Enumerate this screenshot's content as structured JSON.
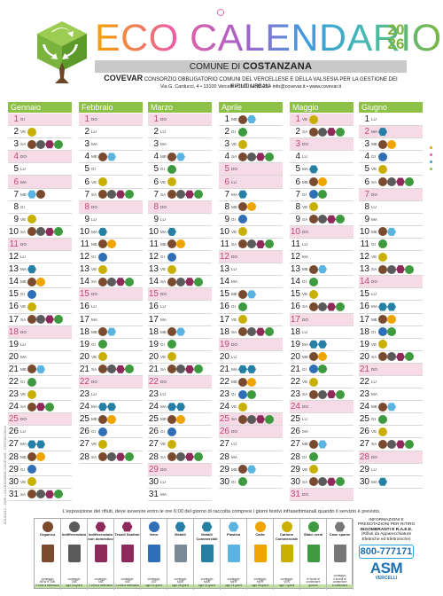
{
  "header": {
    "title": "ECO CALENDARIO",
    "year": "2026",
    "comune_prefix": "COMUNE DI",
    "comune": "COSTANZANA",
    "consortium_name": "COVEVAR",
    "consortium_desc": "CONSORZIO OBBLIGATORIO COMUNI DEL VERCELLESE E DELLA VALSESIA PER LA GESTIONE DEI RIFIUTI URBANI",
    "address": "Via G. Carducci, 4 • 13100 Vercelli • 0161 64.93.26 • info@covevar.it • www.covevar.it"
  },
  "colors": {
    "green": "#8cc046",
    "O": "#7a4a2e",
    "I": "#5a5a5a",
    "T": "#8e2a5a",
    "S": "#3e9a3e",
    "V": "#2f6fb8",
    "MC": "#2680a6",
    "M": "#2680a6",
    "C": "#f0a400",
    "CC": "#c9b000",
    "P": "#5ab3e0",
    "G": "#777777",
    "holiday": "#f6dbe7"
  },
  "icons": {
    "O": "organico",
    "I": "indifferenziato",
    "T": "tessili-sanitari",
    "S": "sfalci",
    "V": "vetro",
    "MC": "metalli-commerciali",
    "M": "metalli",
    "C": "carta",
    "CC": "carta-commerciale",
    "P": "plastica",
    "G": "grey-bin"
  },
  "months": [
    {
      "name": "Gennaio",
      "days": [
        [
          "1",
          "GI",
          "",
          [
            "H"
          ]
        ],
        [
          "2",
          "VE",
          "CC",
          []
        ],
        [
          "3",
          "SA",
          "OITS",
          []
        ],
        [
          "4",
          "DO",
          "",
          [
            "H"
          ]
        ],
        [
          "5",
          "LU",
          "",
          []
        ],
        [
          "6",
          "MA",
          "",
          [
            "H"
          ]
        ],
        [
          "7",
          "ME",
          "PO",
          []
        ],
        [
          "8",
          "GI",
          "",
          []
        ],
        [
          "9",
          "VE",
          "CC",
          []
        ],
        [
          "10",
          "SA",
          "OITS",
          []
        ],
        [
          "11",
          "DO",
          "",
          [
            "H"
          ]
        ],
        [
          "12",
          "LU",
          "",
          []
        ],
        [
          "13",
          "MA",
          "MC",
          []
        ],
        [
          "14",
          "ME",
          "OC",
          []
        ],
        [
          "15",
          "GI",
          "V",
          []
        ],
        [
          "16",
          "VE",
          "CC",
          []
        ],
        [
          "17",
          "SA",
          "OITS",
          []
        ],
        [
          "18",
          "DO",
          "",
          [
            "H"
          ]
        ],
        [
          "19",
          "LU",
          "",
          []
        ],
        [
          "20",
          "MA",
          "",
          []
        ],
        [
          "21",
          "ME",
          "OP",
          []
        ],
        [
          "22",
          "GI",
          "S",
          []
        ],
        [
          "23",
          "VE",
          "CC",
          []
        ],
        [
          "24",
          "SA",
          "OTS",
          []
        ],
        [
          "25",
          "DO",
          "",
          [
            "H"
          ]
        ],
        [
          "26",
          "LU",
          "",
          []
        ],
        [
          "27",
          "MA",
          "MMC",
          []
        ],
        [
          "28",
          "ME",
          "OC",
          []
        ],
        [
          "29",
          "GI",
          "V",
          []
        ],
        [
          "30",
          "VE",
          "CC",
          []
        ],
        [
          "31",
          "SA",
          "OITS",
          []
        ]
      ]
    },
    {
      "name": "Febbraio",
      "days": [
        [
          "1",
          "DO",
          "",
          [
            "H"
          ]
        ],
        [
          "2",
          "LU",
          "",
          []
        ],
        [
          "3",
          "MA",
          "",
          []
        ],
        [
          "4",
          "ME",
          "OP",
          []
        ],
        [
          "5",
          "GI",
          "",
          []
        ],
        [
          "6",
          "VE",
          "CC",
          []
        ],
        [
          "7",
          "SA",
          "OITS",
          []
        ],
        [
          "8",
          "DO",
          "",
          [
            "H"
          ]
        ],
        [
          "9",
          "LU",
          "",
          []
        ],
        [
          "10",
          "MA",
          "MC",
          []
        ],
        [
          "11",
          "ME",
          "OC",
          []
        ],
        [
          "12",
          "GI",
          "V",
          []
        ],
        [
          "13",
          "VE",
          "CC",
          []
        ],
        [
          "14",
          "SA",
          "OITS",
          []
        ],
        [
          "15",
          "DO",
          "",
          [
            "H"
          ]
        ],
        [
          "16",
          "LU",
          "",
          []
        ],
        [
          "17",
          "MA",
          "",
          []
        ],
        [
          "18",
          "ME",
          "OP",
          []
        ],
        [
          "19",
          "GI",
          "S",
          []
        ],
        [
          "20",
          "VE",
          "CC",
          []
        ],
        [
          "21",
          "SA",
          "OITS",
          []
        ],
        [
          "22",
          "DO",
          "",
          [
            "H"
          ]
        ],
        [
          "23",
          "LU",
          "",
          []
        ],
        [
          "24",
          "MA",
          "MMC",
          []
        ],
        [
          "25",
          "ME",
          "OC",
          []
        ],
        [
          "26",
          "GI",
          "V",
          []
        ],
        [
          "27",
          "VE",
          "CC",
          []
        ],
        [
          "28",
          "SA",
          "OITS",
          []
        ]
      ]
    },
    {
      "name": "Marzo",
      "days": [
        [
          "1",
          "DO",
          "",
          [
            "H"
          ]
        ],
        [
          "2",
          "LU",
          "",
          []
        ],
        [
          "3",
          "MA",
          "",
          []
        ],
        [
          "4",
          "ME",
          "OP",
          []
        ],
        [
          "5",
          "GI",
          "S",
          []
        ],
        [
          "6",
          "VE",
          "CC",
          []
        ],
        [
          "7",
          "SA",
          "OITS",
          []
        ],
        [
          "8",
          "DO",
          "",
          [
            "H"
          ]
        ],
        [
          "9",
          "LU",
          "",
          []
        ],
        [
          "10",
          "MA",
          "MC",
          []
        ],
        [
          "11",
          "ME",
          "OC",
          []
        ],
        [
          "12",
          "GI",
          "V",
          []
        ],
        [
          "13",
          "VE",
          "CC",
          []
        ],
        [
          "14",
          "SA",
          "OITS",
          []
        ],
        [
          "15",
          "DO",
          "",
          [
            "H"
          ]
        ],
        [
          "16",
          "LU",
          "",
          []
        ],
        [
          "17",
          "MA",
          "",
          []
        ],
        [
          "18",
          "ME",
          "OP",
          []
        ],
        [
          "19",
          "GI",
          "S",
          []
        ],
        [
          "20",
          "VE",
          "CC",
          []
        ],
        [
          "21",
          "SA",
          "OITS",
          []
        ],
        [
          "22",
          "DO",
          "",
          [
            "H"
          ]
        ],
        [
          "23",
          "LU",
          "",
          []
        ],
        [
          "24",
          "MA",
          "MMC",
          []
        ],
        [
          "25",
          "ME",
          "OC",
          []
        ],
        [
          "26",
          "GI",
          "V",
          []
        ],
        [
          "27",
          "VE",
          "CC",
          []
        ],
        [
          "28",
          "SA",
          "OITS",
          []
        ],
        [
          "29",
          "DO",
          "",
          [
            "H"
          ]
        ],
        [
          "30",
          "LU",
          "",
          []
        ],
        [
          "31",
          "MA",
          "",
          []
        ]
      ]
    },
    {
      "name": "Aprile",
      "days": [
        [
          "1",
          "ME",
          "OP",
          []
        ],
        [
          "2",
          "GI",
          "S",
          []
        ],
        [
          "3",
          "VE",
          "CC",
          []
        ],
        [
          "4",
          "SA",
          "OITS",
          []
        ],
        [
          "5",
          "DO",
          "",
          [
            "H"
          ]
        ],
        [
          "6",
          "LU",
          "",
          [
            "H"
          ]
        ],
        [
          "7",
          "MA",
          "MC",
          []
        ],
        [
          "8",
          "ME",
          "OC",
          []
        ],
        [
          "9",
          "GI",
          "V",
          []
        ],
        [
          "10",
          "VE",
          "CC",
          []
        ],
        [
          "11",
          "SA",
          "OITS",
          []
        ],
        [
          "12",
          "DO",
          "",
          [
            "H"
          ]
        ],
        [
          "13",
          "LU",
          "",
          []
        ],
        [
          "14",
          "MA",
          "",
          []
        ],
        [
          "15",
          "ME",
          "OP",
          []
        ],
        [
          "16",
          "GI",
          "S",
          []
        ],
        [
          "17",
          "VE",
          "CC",
          []
        ],
        [
          "18",
          "SA",
          "OITS",
          []
        ],
        [
          "19",
          "DO",
          "",
          [
            "H"
          ]
        ],
        [
          "20",
          "LU",
          "",
          []
        ],
        [
          "21",
          "MA",
          "MMC",
          []
        ],
        [
          "22",
          "ME",
          "OC",
          []
        ],
        [
          "23",
          "GI",
          "VS",
          []
        ],
        [
          "24",
          "VE",
          "CC",
          []
        ],
        [
          "25",
          "SA",
          "OITS",
          [
            "H"
          ]
        ],
        [
          "26",
          "DO",
          "",
          [
            "H"
          ]
        ],
        [
          "27",
          "LU",
          "",
          []
        ],
        [
          "28",
          "MA",
          "",
          []
        ],
        [
          "29",
          "ME",
          "OP",
          []
        ],
        [
          "30",
          "GI",
          "S",
          []
        ]
      ]
    },
    {
      "name": "Maggio",
      "days": [
        [
          "1",
          "VE",
          "CC",
          [
            "H"
          ]
        ],
        [
          "2",
          "SA",
          "OITS",
          []
        ],
        [
          "3",
          "DO",
          "",
          [
            "H"
          ]
        ],
        [
          "4",
          "LU",
          "",
          []
        ],
        [
          "5",
          "MA",
          "MC",
          []
        ],
        [
          "6",
          "ME",
          "OC",
          []
        ],
        [
          "7",
          "GI",
          "VS",
          []
        ],
        [
          "8",
          "VE",
          "CC",
          []
        ],
        [
          "9",
          "SA",
          "OITS",
          []
        ],
        [
          "10",
          "DO",
          "",
          [
            "H"
          ]
        ],
        [
          "11",
          "LU",
          "",
          []
        ],
        [
          "12",
          "MA",
          "",
          []
        ],
        [
          "13",
          "ME",
          "OP",
          []
        ],
        [
          "14",
          "GI",
          "S",
          []
        ],
        [
          "15",
          "VE",
          "CC",
          []
        ],
        [
          "16",
          "SA",
          "OITS",
          []
        ],
        [
          "17",
          "DO",
          "",
          [
            "H"
          ]
        ],
        [
          "18",
          "LU",
          "",
          []
        ],
        [
          "19",
          "MA",
          "MMC",
          []
        ],
        [
          "20",
          "ME",
          "OC",
          []
        ],
        [
          "21",
          "GI",
          "VS",
          []
        ],
        [
          "22",
          "VE",
          "CC",
          []
        ],
        [
          "23",
          "SA",
          "OITS",
          []
        ],
        [
          "24",
          "DO",
          "",
          [
            "H"
          ]
        ],
        [
          "25",
          "LU",
          "",
          []
        ],
        [
          "26",
          "MA",
          "",
          []
        ],
        [
          "27",
          "ME",
          "OP",
          []
        ],
        [
          "28",
          "GI",
          "S",
          []
        ],
        [
          "29",
          "VE",
          "CC",
          []
        ],
        [
          "30",
          "SA",
          "OITS",
          []
        ],
        [
          "31",
          "DO",
          "",
          [
            "H"
          ]
        ]
      ]
    },
    {
      "name": "Giugno",
      "days": [
        [
          "1",
          "LU",
          "",
          []
        ],
        [
          "2",
          "MA",
          "MC",
          [
            "H"
          ]
        ],
        [
          "3",
          "ME",
          "OC",
          []
        ],
        [
          "4",
          "GI",
          "V",
          []
        ],
        [
          "5",
          "VE",
          "CC",
          []
        ],
        [
          "6",
          "SA",
          "OITS",
          []
        ],
        [
          "7",
          "DO",
          "",
          [
            "H"
          ]
        ],
        [
          "8",
          "LU",
          "",
          []
        ],
        [
          "9",
          "MA",
          "",
          []
        ],
        [
          "10",
          "ME",
          "OP",
          []
        ],
        [
          "11",
          "GI",
          "S",
          []
        ],
        [
          "12",
          "VE",
          "CC",
          []
        ],
        [
          "13",
          "SA",
          "OITS",
          []
        ],
        [
          "14",
          "DO",
          "",
          [
            "H"
          ]
        ],
        [
          "15",
          "LU",
          "",
          []
        ],
        [
          "16",
          "MA",
          "MMC",
          []
        ],
        [
          "17",
          "ME",
          "OC",
          []
        ],
        [
          "18",
          "GI",
          "VS",
          []
        ],
        [
          "19",
          "VE",
          "CC",
          []
        ],
        [
          "20",
          "SA",
          "OITS",
          []
        ],
        [
          "21",
          "DO",
          "",
          [
            "H"
          ]
        ],
        [
          "22",
          "LU",
          "",
          []
        ],
        [
          "23",
          "MA",
          "",
          []
        ],
        [
          "24",
          "ME",
          "OP",
          []
        ],
        [
          "25",
          "GI",
          "S",
          []
        ],
        [
          "26",
          "VE",
          "CC",
          []
        ],
        [
          "27",
          "SA",
          "OITS",
          []
        ],
        [
          "28",
          "DO",
          "",
          [
            "H"
          ]
        ],
        [
          "29",
          "LU",
          "",
          []
        ],
        [
          "30",
          "MA",
          "MC",
          []
        ]
      ]
    }
  ],
  "note": "L'esposizione dei rifiuti, deve avvenire entro le ore 6:00 del giorno di raccolta compresi i giorni festivi infrasettimanali quando il servizio è previsto.",
  "legend": [
    {
      "code": "O",
      "label": "Organico",
      "foot": "conteggio\nNEW e TAB\n2 volte a settimana"
    },
    {
      "code": "I",
      "label": "Indifferenziato",
      "foot": "conteggio\nTAB\nogni 1a giorni"
    },
    {
      "code": "T",
      "label": "Indifferenziato non domestico",
      "foot": "conteggio\nTAB\n1 volta a settimana"
    },
    {
      "code": "T",
      "label": "Tessili Sanitari",
      "foot": "conteggio\nTAB\n1 volta a settimana"
    },
    {
      "code": "V",
      "label": "Vetro",
      "foot": "conteggio\nGIO\nogni 14 giorni"
    },
    {
      "code": "M",
      "label": "Metalli",
      "foot": "conteggio\nMAR\nogni 28 giorni"
    },
    {
      "code": "MC",
      "label": "Metalli Commerciali",
      "foot": "conteggio\nMAR\nogni 14 giorni"
    },
    {
      "code": "P",
      "label": "Plastica",
      "foot": "conteggio\nMER\nogni 14 giorni"
    },
    {
      "code": "C",
      "label": "Carta",
      "foot": "conteggio\nMER\nogni 28 giorni"
    },
    {
      "code": "CC",
      "label": "Cartone Commerciale",
      "foot": "conteggio\nVEN\nogni 7 giorni"
    },
    {
      "code": "S",
      "label": "Sfalci verdi",
      "foot": "le buste al contenitore\ngiovedì"
    },
    {
      "code": "G",
      "label": "Case sparse",
      "foot": "conteggio\nil lunedi al contenitore\nin settimana"
    }
  ],
  "info": {
    "title": "INFORMAZIONI E PRENOTAZIONI PER RITIRO",
    "sub": "INGOMBRANTI E R.A.E.E.",
    "sub2": "(Rifiuti da Apparecchiature Elettriche ed Elettroniche)",
    "phone": "800-777171",
    "brand": "ASM",
    "brand_sub": "VERCELLI"
  },
  "side_text": "001/01/12 - 2026 • CALENDARIO COVEVAR - COSTANZANA"
}
